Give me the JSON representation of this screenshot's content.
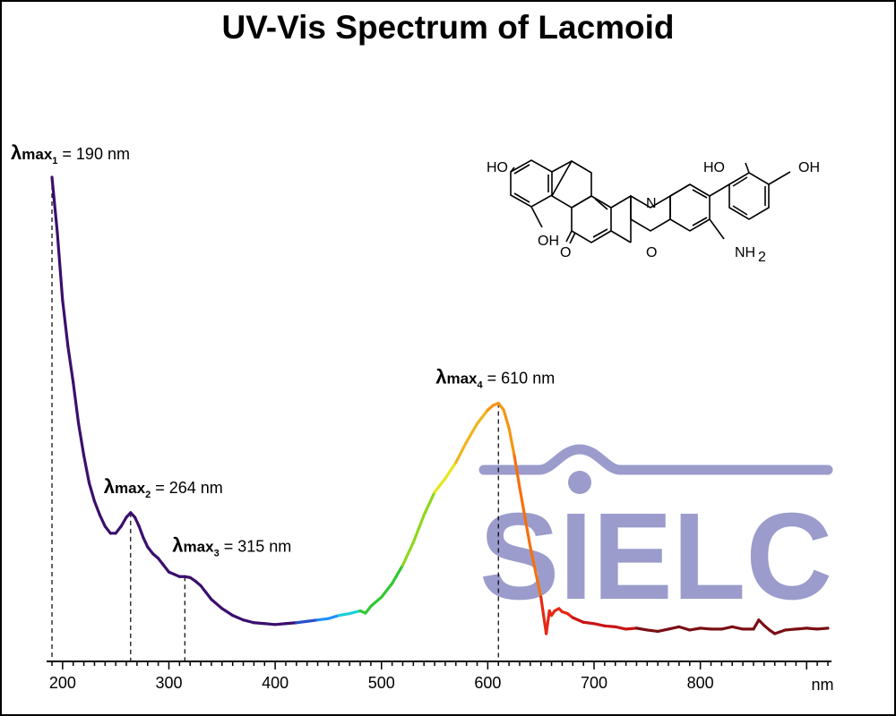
{
  "title": "UV-Vis Spectrum of Lacmoid",
  "chart_data": {
    "type": "line",
    "title": "UV-Vis Spectrum of Lacmoid",
    "xlabel": "nm",
    "ylabel": "",
    "xlim": [
      185,
      925
    ],
    "ylim": [
      0,
      1
    ],
    "x_ticks": [
      200,
      300,
      400,
      500,
      600,
      700,
      800
    ],
    "grid": false,
    "y_axis_visible": false,
    "line_coloring": "wavelength colormap (violet → blue → cyan → green → yellow → orange → red → dark red)",
    "series": [
      {
        "x": [
          190,
          195,
          200,
          205,
          210,
          215,
          220,
          225,
          230,
          235,
          240,
          245,
          250,
          255,
          260,
          264,
          268,
          272,
          276,
          280,
          285,
          290,
          295,
          300,
          305,
          310,
          315,
          320,
          325,
          330,
          335,
          340,
          350,
          360,
          370,
          380,
          390,
          400,
          410,
          420,
          430,
          440,
          450,
          460,
          470,
          480,
          485,
          490,
          500,
          510,
          520,
          530,
          540,
          550,
          560,
          570,
          580,
          590,
          600,
          605,
          610,
          615,
          620,
          625,
          630,
          640,
          650,
          655,
          658,
          660,
          663,
          667,
          670,
          675,
          680,
          690,
          700,
          710,
          720,
          730,
          740,
          750,
          760,
          770,
          780,
          790,
          800,
          810,
          820,
          830,
          840,
          850,
          855,
          860,
          865,
          870,
          880,
          890,
          900,
          910,
          920
        ],
        "y": [
          1.0,
          0.88,
          0.73,
          0.63,
          0.55,
          0.46,
          0.39,
          0.33,
          0.29,
          0.26,
          0.235,
          0.22,
          0.22,
          0.235,
          0.255,
          0.265,
          0.255,
          0.235,
          0.21,
          0.19,
          0.175,
          0.165,
          0.15,
          0.135,
          0.13,
          0.125,
          0.125,
          0.123,
          0.115,
          0.105,
          0.09,
          0.075,
          0.055,
          0.04,
          0.03,
          0.024,
          0.022,
          0.02,
          0.022,
          0.024,
          0.027,
          0.03,
          0.033,
          0.04,
          0.044,
          0.05,
          0.045,
          0.06,
          0.08,
          0.11,
          0.15,
          0.2,
          0.26,
          0.31,
          0.34,
          0.375,
          0.42,
          0.46,
          0.49,
          0.5,
          0.505,
          0.49,
          0.45,
          0.39,
          0.32,
          0.19,
          0.08,
          0.0,
          0.05,
          0.04,
          0.05,
          0.055,
          0.048,
          0.044,
          0.035,
          0.025,
          0.022,
          0.017,
          0.015,
          0.01,
          0.012,
          0.008,
          0.005,
          0.01,
          0.015,
          0.008,
          0.012,
          0.01,
          0.01,
          0.015,
          0.01,
          0.01,
          0.03,
          0.018,
          0.008,
          0.0,
          0.008,
          0.01,
          0.012,
          0.01,
          0.012
        ]
      }
    ],
    "annotations": [
      {
        "label": "λmax",
        "sub": "1",
        "text": " = 190 nm",
        "x": 190
      },
      {
        "label": "λmax",
        "sub": "2",
        "text": " = 264 nm",
        "x": 264
      },
      {
        "label": "λmax",
        "sub": "3",
        "text": " = 315 nm",
        "x": 315
      },
      {
        "label": "λmax",
        "sub": "4",
        "text": " = 610 nm",
        "x": 610
      }
    ]
  },
  "structure": {
    "labels": [
      "HO",
      "HO",
      "OH",
      "OH",
      "N",
      "O",
      "O",
      "NH",
      "2"
    ]
  },
  "watermark": {
    "text": "SIELC",
    "color": "#9b9ccc"
  }
}
